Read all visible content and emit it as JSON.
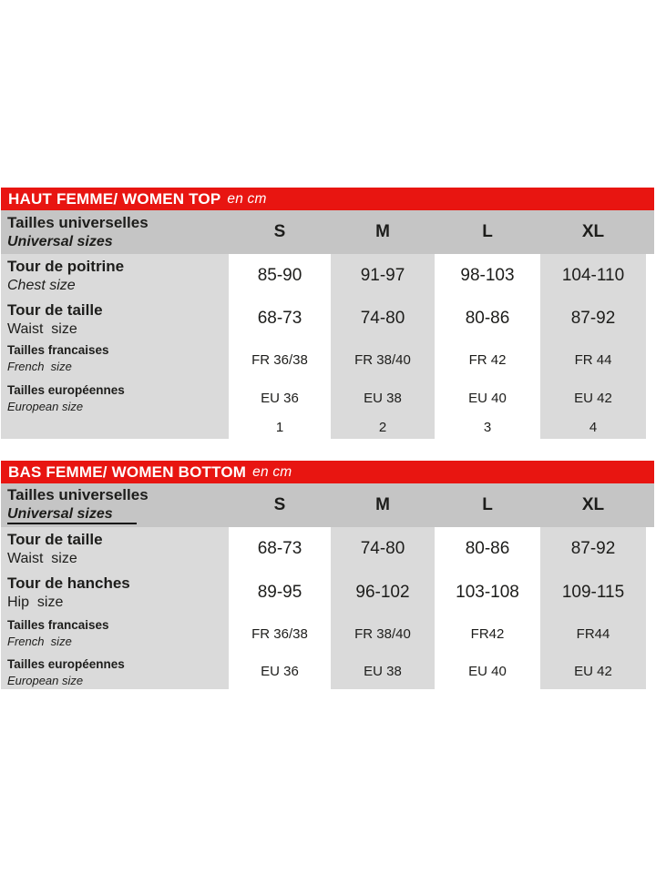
{
  "colors": {
    "accent_red": "#e81511",
    "header_gray": "#c5c5c5",
    "band_gray": "#dadada",
    "text": "#1d1d1b",
    "bar_text": "#ffffff"
  },
  "tables": [
    {
      "title": "HAUT FEMME/ WOMEN TOP",
      "unit": "en cm",
      "size_header": {
        "fr": "Tailles universelles",
        "en": "Universal sizes",
        "sizes": [
          "S",
          "M",
          "L",
          "XL"
        ]
      },
      "rows": [
        {
          "fr": "Tour de poitrine",
          "en": "Chest size",
          "values": [
            "85-90",
            "91-97",
            "98-103",
            "104-110"
          ]
        },
        {
          "fr": "Tour de taille",
          "en": "Waist  size",
          "values": [
            "68-73",
            "74-80",
            "80-86",
            "87-92"
          ]
        },
        {
          "fr": "Tailles francaises",
          "en": "French  size",
          "values": [
            "FR 36/38",
            "FR 38/40",
            "FR 42",
            "FR 44"
          ]
        },
        {
          "fr": "Tailles européennes",
          "en": "European size",
          "values": [
            "EU 36",
            "EU 38",
            "EU 40",
            "EU 42"
          ]
        },
        {
          "fr": "",
          "en": "",
          "values": [
            "1",
            "2",
            "3",
            "4"
          ]
        }
      ]
    },
    {
      "title": "BAS FEMME/ WOMEN BOTTOM",
      "unit": "en cm",
      "size_header": {
        "fr": "Tailles universelles",
        "en": "Universal sizes",
        "sizes": [
          "S",
          "M",
          "L",
          "XL"
        ]
      },
      "rows": [
        {
          "fr": "Tour de taille",
          "en": "Waist  size",
          "values": [
            "68-73",
            "74-80",
            "80-86",
            "87-92"
          ]
        },
        {
          "fr": "Tour de hanches",
          "en": "Hip  size",
          "values": [
            "89-95",
            "96-102",
            "103-108",
            "109-115"
          ]
        },
        {
          "fr": "Tailles francaises",
          "en": "French  size",
          "values": [
            "FR 36/38",
            "FR 38/40",
            "FR42",
            "FR44"
          ]
        },
        {
          "fr": "Tailles européennes",
          "en": "European size",
          "values": [
            "EU 36",
            "EU 38",
            "EU 40",
            "EU 42"
          ]
        }
      ]
    }
  ]
}
